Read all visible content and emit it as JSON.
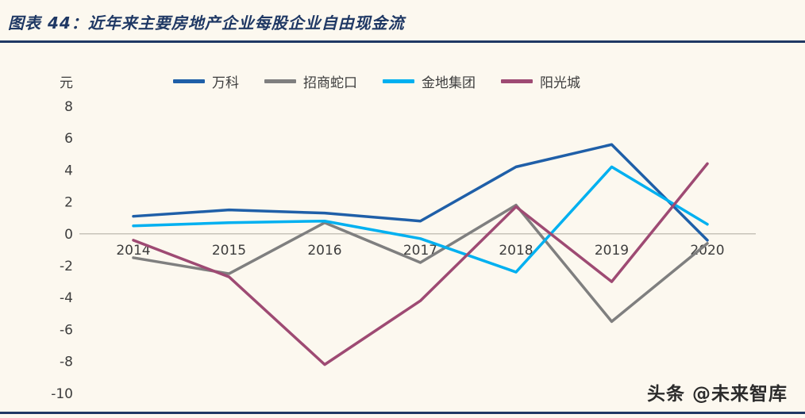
{
  "header": {
    "title": "图表 44：近年来主要房地产企业每股企业自由现金流"
  },
  "footer": {
    "watermark": "头条 @未来智库"
  },
  "colors": {
    "accent": "#1F3864",
    "background": "#FCF8EF",
    "axis_line": "#C8C3B9",
    "tick_text": "#3D3D3D"
  },
  "chart_data": {
    "type": "line",
    "title": "近年来主要房地产企业每股企业自由现金流",
    "ylabel": "元",
    "xlabel": "",
    "ylim": [
      -10,
      8
    ],
    "ytick_step": 2,
    "grid": false,
    "legend_position": "top",
    "categories": [
      "2014",
      "2015",
      "2016",
      "2017",
      "2018",
      "2019",
      "2020"
    ],
    "series": [
      {
        "name": "万科",
        "color": "#1F5FA8",
        "values": [
          1.1,
          1.5,
          1.3,
          0.8,
          4.2,
          5.6,
          -0.4
        ]
      },
      {
        "name": "招商蛇口",
        "color": "#7F7F7F",
        "values": [
          -1.5,
          -2.5,
          0.7,
          -1.8,
          1.8,
          -5.5,
          -0.6
        ]
      },
      {
        "name": "金地集团",
        "color": "#00B0F0",
        "values": [
          0.5,
          0.7,
          0.8,
          -0.3,
          -2.4,
          4.2,
          0.6
        ]
      },
      {
        "name": "阳光城",
        "color": "#9E4A73",
        "values": [
          -0.4,
          -2.7,
          -8.2,
          -4.2,
          1.7,
          -3.0,
          4.4
        ]
      }
    ]
  }
}
